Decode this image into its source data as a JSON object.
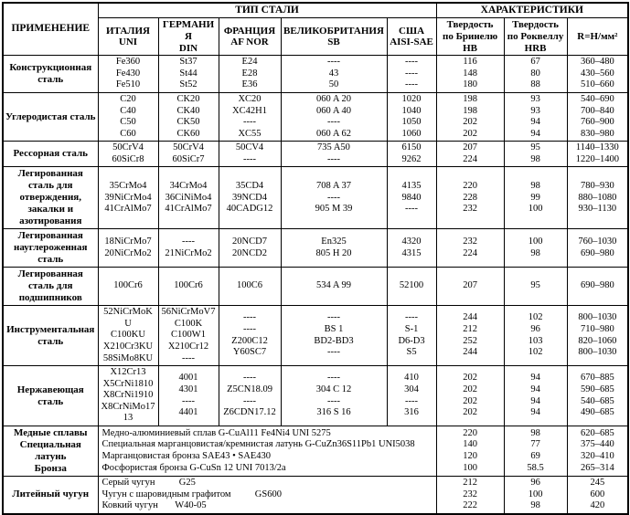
{
  "colors": {
    "border": "#000000",
    "text": "#000000",
    "background": "#ffffff"
  },
  "headers": {
    "application": "ПРИМЕНЕНИЕ",
    "steel_type": "ТИП СТАЛИ",
    "characteristics": "ХАРАКТЕРИСТИКИ",
    "columns": [
      "ИТАЛИЯ\nUNI",
      "ГЕРМАНИЯ\nDIN",
      "ФРАНЦИЯ\nAF NOR",
      "ВЕЛИКОБРИТАНИЯ\nSB",
      "США\nAISI-SAE",
      "Твердость\nпо Бринелю\nHB",
      "Твердость\nпо Роквеллу\nHRB",
      "R=Н/мм²"
    ]
  },
  "rows": [
    {
      "label": "Конструкционная\nсталь",
      "cells": [
        "Fe360\nFe430\nFe510",
        "St37\nSt44\nSt52",
        "E24\nE28\nE36",
        "----\n43\n50",
        "----\n----\n----",
        "116\n148\n180",
        "67\n80\n88",
        "360–480\n430–560\n510–660"
      ]
    },
    {
      "label": "Углеродистая сталь",
      "cells": [
        "C20\nC40\nC50\nC60",
        "CK20\nCK40\nCK50\nCK60",
        "XC20\nXC42H1\n----\nXC55",
        "060 A 20\n060 A 40\n----\n060 A 62",
        "1020\n1040\n1050\n1060",
        "198\n198\n202\n202",
        "93\n93\n94\n94",
        "540–690\n700–840\n760–900\n830–980"
      ]
    },
    {
      "label": "Рессорная сталь",
      "cells": [
        "50CrV4\n60SiCr8",
        "50CrV4\n60SiCr7",
        "50CV4\n----",
        "735 A50\n----",
        "6150\n9262",
        "207\n224",
        "95\n98",
        "1140–1330\n1220–1400"
      ]
    },
    {
      "label": "Легированная\nсталь для\nотверждения,\nзакалки и\nазотирования",
      "cells": [
        "35CrMo4\n39NiCrMo4\n41CrAlMo7",
        "34CrMo4\n36CiNiMo4\n41CrAlMo7",
        "35CD4\n39NCD4\n40CADG12",
        "708 A 37\n----\n905 M 39",
        "4135\n9840\n----",
        "220\n228\n232",
        "98\n99\n100",
        "780–930\n880–1080\n930–1130"
      ]
    },
    {
      "label": "Легированная\nнауглероженная\nсталь",
      "cells": [
        "18NiCrMo7\n20NiCrMo2",
        "----\n21NiCrMo2",
        "20NCD7\n20NCD2",
        "En325\n805 H 20",
        "4320\n4315",
        "232\n224",
        "100\n98",
        "760–1030\n690–980"
      ]
    },
    {
      "label": "Легированная\nсталь для\nподшипников",
      "cells": [
        "100Cr6",
        "100Cr6",
        "100C6",
        "534 A 99",
        "52100",
        "207",
        "95",
        "690–980"
      ]
    },
    {
      "label": "Инструментальная\nсталь",
      "cells": [
        "52NiCrMoKU\nC100KU\nX210Cr3KU\n58SiMo8KU",
        "56NiCrMoV7\nC100K\nC100W1\nX210Cr12\n----",
        "----\n----\nZ200C12\nY60SC7",
        "----\nBS 1\nBD2-BD3\n----",
        "----\nS-1\nD6-D3\nS5",
        "244\n212\n252\n244",
        "102\n96\n103\n102",
        "800–1030\n710–980\n820–1060\n800–1030"
      ]
    },
    {
      "label": "Нержавеющая\nсталь",
      "cells": [
        "X12Cr13\nX5CrNi1810\nX8CrNi1910\nX8CrNiMo1713",
        "4001\n4301\n----\n4401",
        "----\nZ5CN18.09\n----\nZ6CDN17.12",
        "----\n304 C 12\n----\n316 S 16",
        "410\n304\n----\n316",
        "202\n202\n202\n202",
        "94\n94\n94\n94",
        "670–885\n590–685\n540–685\n490–685"
      ]
    }
  ],
  "copper_row": {
    "label": "Медные сплавы\nСпециальная\nлатунь\nБронза",
    "description": "Медно-алюминиевый сплав G-CuAl11 Fe4Ni4 UNI 5275\nСпециальная марганцовистая/кремнистая латунь G-CuZn36S11Pb1 UNI5038\nМарганцовистая бронза SAE43 • SAE430\nФосфористая бронза G-CuSn 12 UNI 7013/2a",
    "hb": "220\n140\n120\n100",
    "hrb": "98\n77\n69\n58.5",
    "r": "620–685\n375–440\n320–410\n265–314"
  },
  "cast_iron_row": {
    "label": "Литейный чугун",
    "description": "Серый чугун          G25\nЧугун с шаровидным графитом          GS600\nКовкий чугун       W40-05",
    "hb": "212\n232\n222",
    "hrb": "96\n100\n98",
    "r": "245\n600\n420"
  }
}
